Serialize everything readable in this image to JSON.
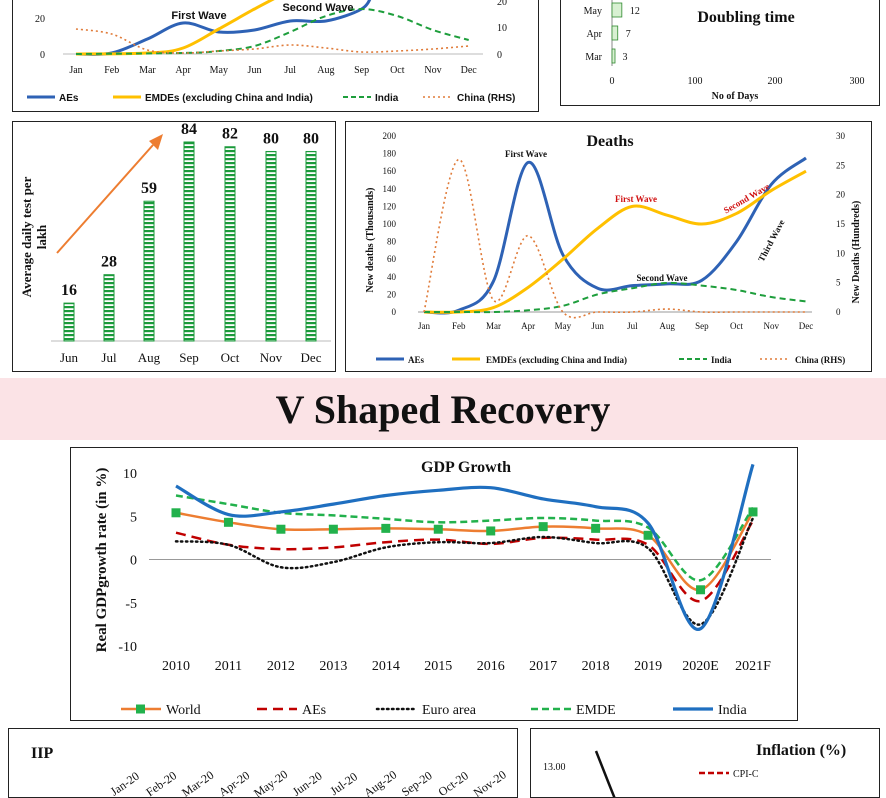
{
  "section_title": "V Shaped Recovery",
  "colors": {
    "aes": "#2e62b5",
    "emdes": "#ffc000",
    "india": "#1e9e3c",
    "china": "#e07b39",
    "world": "#ed7d31",
    "world_marker": "#22b14c",
    "aes_gdp": "#c00000",
    "euro": "#111111",
    "emde": "#22b14c",
    "india_gdp": "#1f6fc0",
    "bars": "#1a9a3a",
    "banner": "#fbe3e6"
  },
  "cases_panel": {
    "months": [
      "Jan",
      "Feb",
      "Mar",
      "Apr",
      "May",
      "Jun",
      "Jul",
      "Aug",
      "Sep",
      "Oct",
      "Nov",
      "Dec"
    ],
    "yticks_left": [
      "20",
      "0"
    ],
    "yticks_right": [
      "20",
      "10",
      "0"
    ],
    "annotations": {
      "first_wave": "First Wave",
      "second_wave": "Second Wave"
    },
    "legend": [
      "AEs",
      "EMDEs (excluding China and India)",
      "India",
      "China (RHS)"
    ]
  },
  "doubling_panel": {
    "title": "Doubling time",
    "rows": [
      {
        "label": "May",
        "value": "12"
      },
      {
        "label": "Apr",
        "value": "7"
      },
      {
        "label": "Mar",
        "value": "3"
      }
    ],
    "xticks": [
      "0",
      "100",
      "200",
      "300"
    ],
    "xlabel": "No of Days"
  },
  "tests_panel": {
    "ylabel": "Average daily test per lakh",
    "chart_data": {
      "type": "bar",
      "categories": [
        "Jun",
        "Jul",
        "Aug",
        "Sep",
        "Oct",
        "Nov",
        "Dec"
      ],
      "values": [
        16,
        28,
        59,
        84,
        82,
        80,
        80
      ],
      "labels": [
        "16",
        "28",
        "59",
        "84",
        "82",
        "80",
        "80"
      ],
      "ylim": [
        0,
        84
      ]
    }
  },
  "deaths_panel": {
    "title": "Deaths",
    "ylabel_left": "New deaths (Thousands)",
    "ylabel_right": "New Deaths (Hundreds)",
    "yticks_left": [
      "200",
      "180",
      "160",
      "140",
      "120",
      "100",
      "80",
      "60",
      "40",
      "20",
      "0"
    ],
    "yticks_right": [
      "30",
      "25",
      "20",
      "15",
      "10",
      "5",
      "0"
    ],
    "months": [
      "Jan",
      "Feb",
      "Mar",
      "Apr",
      "May",
      "Jun",
      "Jul",
      "Aug",
      "Sep",
      "Oct",
      "Nov",
      "Dec"
    ],
    "annotations": {
      "aes_first": "First Wave",
      "emdes_first": "First Wave",
      "emdes_second": "Second Wave",
      "aes_second": "Second Wave",
      "aes_third": "Third Wave"
    },
    "legend": [
      "AEs",
      "EMDEs (excluding China and India)",
      "India",
      "China (RHS)"
    ],
    "chart_data": {
      "type": "line",
      "x": [
        "Jan",
        "Feb",
        "Mar",
        "Apr",
        "May",
        "Jun",
        "Jul",
        "Aug",
        "Sep",
        "Oct",
        "Nov",
        "Dec"
      ],
      "series": [
        {
          "name": "AEs",
          "axis": "left",
          "values": [
            0,
            2,
            35,
            170,
            65,
            27,
            30,
            32,
            36,
            80,
            145,
            175
          ]
        },
        {
          "name": "EMDEs (excluding China and India)",
          "axis": "left",
          "values": [
            0,
            0,
            5,
            28,
            60,
            95,
            120,
            110,
            100,
            112,
            138,
            160
          ]
        },
        {
          "name": "India",
          "axis": "left",
          "values": [
            0,
            0,
            0,
            2,
            7,
            20,
            27,
            33,
            30,
            25,
            17,
            12
          ]
        },
        {
          "name": "China (RHS)",
          "axis": "right",
          "values": [
            0,
            26,
            2,
            13,
            0,
            0,
            0,
            0.5,
            0,
            0,
            0,
            0
          ]
        }
      ],
      "ylim_left": [
        0,
        200
      ],
      "ylim_right": [
        0,
        30
      ]
    }
  },
  "gdp_panel": {
    "title": "GDP Growth",
    "ylabel": "Real GDPgrowth rate (in %)",
    "yticks": [
      "10",
      "5",
      "0",
      "-5",
      "-10"
    ],
    "legend": [
      "World",
      "AEs",
      "Euro area",
      "EMDE",
      "India"
    ],
    "chart_data": {
      "type": "line",
      "x": [
        "2010",
        "2011",
        "2012",
        "2013",
        "2014",
        "2015",
        "2016",
        "2017",
        "2018",
        "2019",
        "2020E",
        "2021F"
      ],
      "series": [
        {
          "name": "World",
          "values": [
            5.4,
            4.3,
            3.5,
            3.5,
            3.6,
            3.5,
            3.3,
            3.8,
            3.6,
            2.8,
            -3.5,
            5.5
          ]
        },
        {
          "name": "AEs",
          "values": [
            3.1,
            1.7,
            1.2,
            1.4,
            2.0,
            2.3,
            1.8,
            2.5,
            2.3,
            1.7,
            -4.8,
            4.5
          ]
        },
        {
          "name": "Euro area",
          "values": [
            2.1,
            1.7,
            -0.9,
            -0.3,
            1.4,
            2.0,
            1.9,
            2.6,
            1.9,
            1.3,
            -7.5,
            4.8
          ]
        },
        {
          "name": "EMDE",
          "values": [
            7.4,
            6.4,
            5.4,
            5.1,
            4.7,
            4.3,
            4.5,
            4.8,
            4.5,
            3.7,
            -2.4,
            6.0
          ]
        },
        {
          "name": "India",
          "values": [
            8.5,
            5.2,
            5.5,
            6.4,
            7.4,
            8.0,
            8.3,
            7.0,
            6.1,
            4.2,
            -8.0,
            11.0
          ]
        }
      ],
      "ylim": [
        -10,
        10
      ]
    }
  },
  "iip_panel": {
    "title": "IIP",
    "months": [
      "Jan-20",
      "Feb-20",
      "Mar-20",
      "Apr-20",
      "May-20",
      "Jun-20",
      "Jul-20",
      "Aug-20",
      "Sep-20",
      "Oct-20",
      "Nov-20"
    ]
  },
  "inflation_panel": {
    "title": "Inflation (%)",
    "ytick": "13.00",
    "legend": [
      "CPI-C"
    ]
  }
}
